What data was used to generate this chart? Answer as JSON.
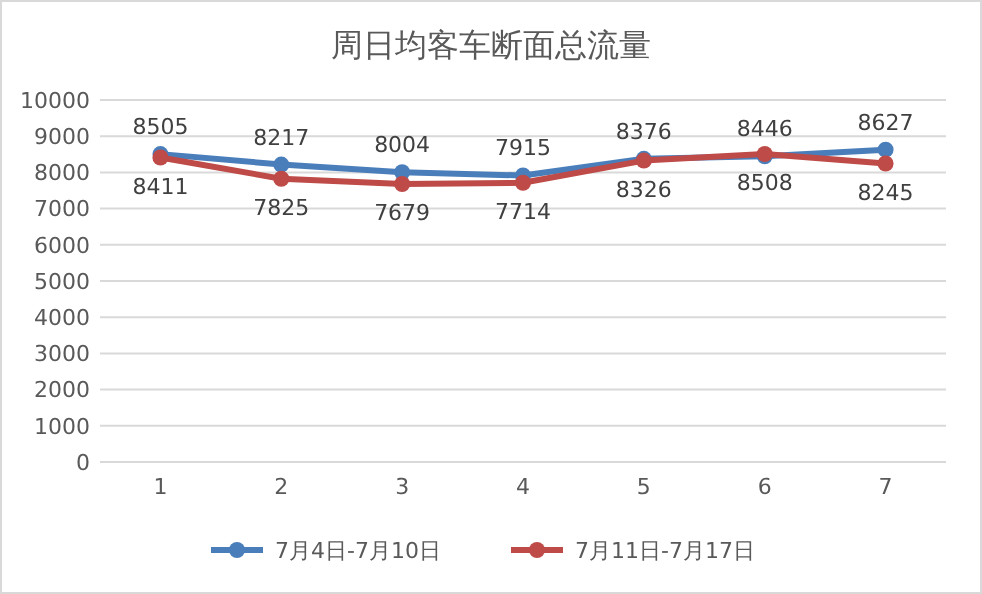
{
  "chart_data": {
    "type": "line",
    "title": "周日均客车断面总流量",
    "categories": [
      "1",
      "2",
      "3",
      "4",
      "5",
      "6",
      "7"
    ],
    "series": [
      {
        "name": "7月4日-7月10日",
        "color": "#4a7ebb",
        "values": [
          8505,
          8217,
          8004,
          7915,
          8376,
          8446,
          8627
        ]
      },
      {
        "name": "7月11日-7月17日",
        "color": "#be4b48",
        "values": [
          8411,
          7825,
          7679,
          7714,
          8326,
          8508,
          8245
        ]
      }
    ],
    "ylim": [
      0,
      10000
    ],
    "yticks": [
      0,
      1000,
      2000,
      3000,
      4000,
      5000,
      6000,
      7000,
      8000,
      9000,
      10000
    ],
    "grid": "y",
    "legend": "bottom",
    "marker": "circle",
    "line_style": "solid",
    "data_labels": true
  }
}
